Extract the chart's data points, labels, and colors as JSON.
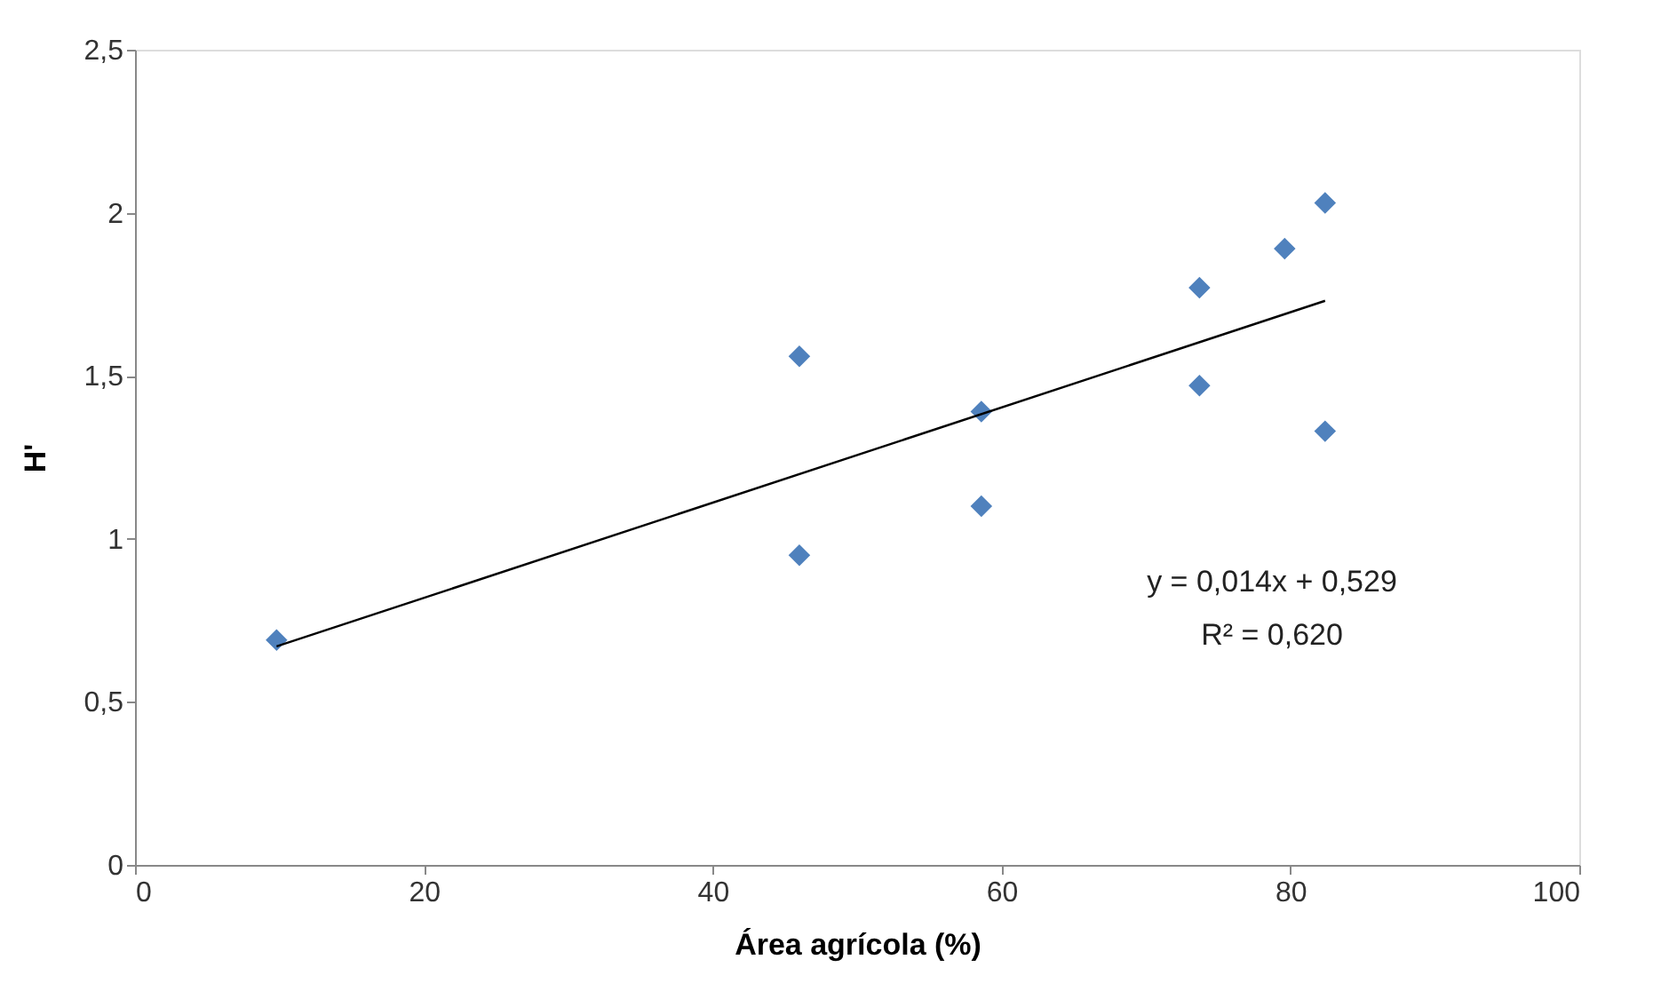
{
  "chart_data": {
    "type": "scatter",
    "xlabel": "Área agrícola (%)",
    "ylabel": "H'",
    "xlim": [
      0,
      100
    ],
    "xticks": [
      0,
      20,
      40,
      60,
      80,
      100
    ],
    "ylim": [
      0,
      2.5
    ],
    "yticks": [
      0,
      {
        "value": 0.5,
        "label": "0,5"
      },
      1,
      {
        "value": 1.5,
        "label": "1,5"
      },
      2,
      {
        "value": 2.5,
        "label": "2,5"
      }
    ],
    "grid": false,
    "series": [
      {
        "color": "#4f81bd",
        "marker": "diamond",
        "x": [
          9.8,
          46.0,
          46.0,
          58.6,
          58.6,
          73.7,
          73.7,
          79.6,
          82.4,
          82.4
        ],
        "values": [
          0.69,
          1.56,
          0.95,
          1.39,
          1.1,
          1.77,
          1.47,
          1.89,
          2.03,
          1.33
        ]
      },
      {
        "type": "line",
        "color": "#000000",
        "marker": "none",
        "line_style": "solid",
        "x": [
          9.8,
          82.4
        ],
        "values": [
          0.67,
          1.73
        ]
      }
    ],
    "annotations": [
      "y = 0,014x + 0,529",
      "R² = 0,620"
    ]
  }
}
